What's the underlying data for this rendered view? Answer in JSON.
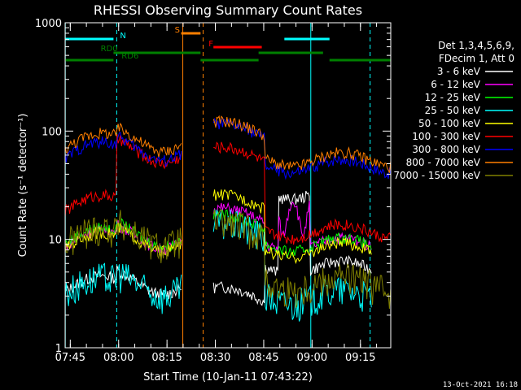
{
  "chart_data": {
    "type": "line",
    "title": "RHESSI Observing Summary Count Rates",
    "xlabel": "Start Time (10-Jan-11 07:43:22)",
    "ylabel": "Count Rate (s⁻¹ detector⁻¹)",
    "ylog": true,
    "xlim_min": [
      0,
      101
    ],
    "ylim": [
      1,
      1000
    ],
    "x_ticks": [
      {
        "label": "07:45",
        "min": 1.6
      },
      {
        "label": "08:00",
        "min": 16.6
      },
      {
        "label": "08:15",
        "min": 31.6
      },
      {
        "label": "08:30",
        "min": 46.6
      },
      {
        "label": "08:45",
        "min": 61.6
      },
      {
        "label": "09:00",
        "min": 76.6
      },
      {
        "label": "09:15",
        "min": 91.6
      }
    ],
    "y_ticks": [
      {
        "label": "1",
        "value": 1
      },
      {
        "label": "10",
        "value": 10
      },
      {
        "label": "100",
        "value": 100
      },
      {
        "label": "1000",
        "value": 1000
      }
    ],
    "legend": {
      "header_line1": "Det 1,3,4,5,6,9,",
      "header_line2": "FDecim 1, Att 0",
      "placement": "right"
    },
    "series": [
      {
        "name": "3 - 6 keV",
        "color": "#ffffff"
      },
      {
        "name": "6 - 12 keV",
        "color": "#ff00ff"
      },
      {
        "name": "12 - 25 keV",
        "color": "#00ff00"
      },
      {
        "name": "25 - 50 keV",
        "color": "#00ffff"
      },
      {
        "name": "50 - 100 keV",
        "color": "#ffff00"
      },
      {
        "name": "100 - 300 keV",
        "color": "#ff0000"
      },
      {
        "name": "300 - 800 keV",
        "color": "#0000ff"
      },
      {
        "name": "800 - 7000 keV",
        "color": "#ff7f00"
      },
      {
        "name": "7000 - 15000 keV",
        "color": "#808000"
      }
    ],
    "flags": [
      {
        "label": "N",
        "color": "#00ffff",
        "segments": [
          [
            0,
            15
          ],
          [
            68,
            82
          ]
        ]
      },
      {
        "label": "S",
        "color": "#ff7f00",
        "segments": [
          [
            36,
            42
          ]
        ]
      },
      {
        "label": "F",
        "color": "#ff0000",
        "segments": [
          [
            46,
            61
          ]
        ]
      },
      {
        "label": "RD0",
        "color": "#008000",
        "segments": [
          [
            15,
            42
          ],
          [
            60,
            80
          ]
        ]
      },
      {
        "label": "RD6",
        "color": "#008000",
        "segments": [
          [
            0,
            15
          ],
          [
            42,
            60
          ],
          [
            82,
            101
          ]
        ]
      }
    ],
    "footer": "13-Oct-2021 16:18"
  }
}
